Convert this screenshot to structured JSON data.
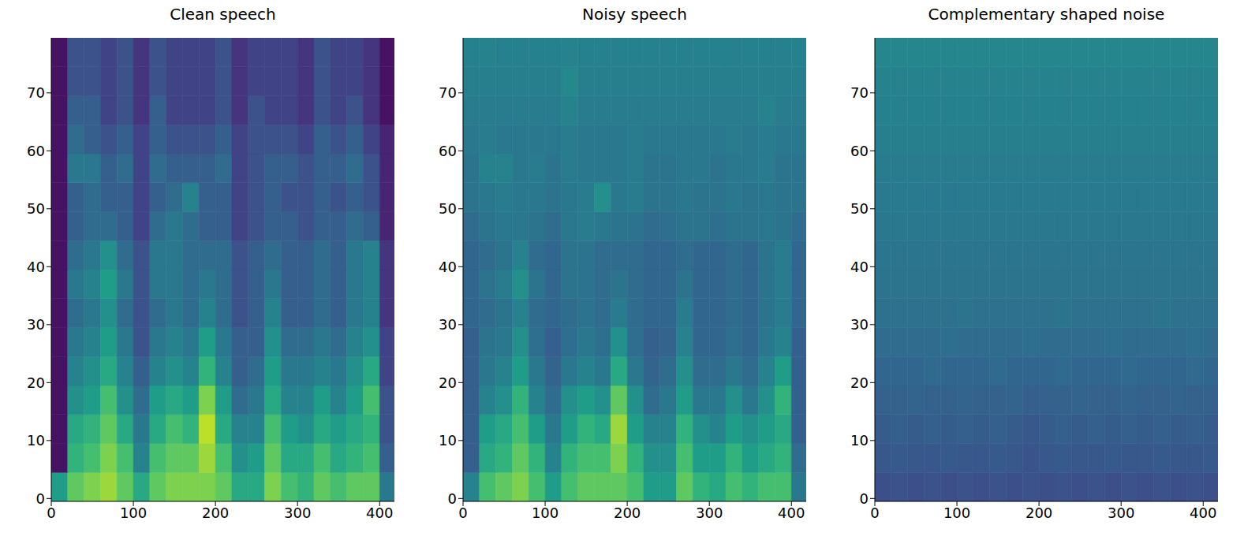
{
  "chart_data": [
    {
      "type": "heatmap",
      "title": "Clean speech",
      "xlim": [
        0,
        418
      ],
      "ylim": [
        -0.5,
        79.5
      ],
      "xticks": [
        0,
        100,
        200,
        300,
        400
      ],
      "yticks": [
        0,
        10,
        20,
        30,
        40,
        50,
        60,
        70
      ],
      "color_range": [
        0,
        1
      ],
      "x_edges": [
        0,
        20,
        40,
        60,
        80,
        100,
        120,
        140,
        160,
        180,
        200,
        220,
        240,
        260,
        280,
        300,
        320,
        340,
        360,
        380,
        400,
        418
      ],
      "y_edges": [
        -0.5,
        4.5,
        9.5,
        14.5,
        19.5,
        24.5,
        29.5,
        34.5,
        39.5,
        44.5,
        49.5,
        54.5,
        59.5,
        64.5,
        69.5,
        74.5,
        79.5
      ],
      "cells": [
        [
          0.55,
          0.75,
          0.8,
          0.85,
          0.75,
          0.6,
          0.75,
          0.8,
          0.8,
          0.8,
          0.75,
          0.6,
          0.6,
          0.8,
          0.7,
          0.65,
          0.75,
          0.7,
          0.75,
          0.75,
          0.4
        ],
        [
          0.05,
          0.65,
          0.7,
          0.8,
          0.7,
          0.45,
          0.7,
          0.75,
          0.75,
          0.85,
          0.7,
          0.5,
          0.55,
          0.75,
          0.6,
          0.6,
          0.7,
          0.6,
          0.65,
          0.7,
          0.3
        ],
        [
          0.05,
          0.6,
          0.65,
          0.75,
          0.6,
          0.4,
          0.6,
          0.7,
          0.65,
          0.9,
          0.6,
          0.45,
          0.45,
          0.7,
          0.55,
          0.5,
          0.6,
          0.55,
          0.6,
          0.65,
          0.25
        ],
        [
          0.05,
          0.5,
          0.55,
          0.7,
          0.5,
          0.35,
          0.55,
          0.6,
          0.55,
          0.8,
          0.55,
          0.35,
          0.4,
          0.6,
          0.45,
          0.45,
          0.55,
          0.45,
          0.55,
          0.7,
          0.25
        ],
        [
          0.05,
          0.45,
          0.5,
          0.6,
          0.45,
          0.3,
          0.45,
          0.5,
          0.45,
          0.65,
          0.45,
          0.3,
          0.35,
          0.55,
          0.4,
          0.4,
          0.45,
          0.4,
          0.5,
          0.6,
          0.2
        ],
        [
          0.05,
          0.4,
          0.45,
          0.55,
          0.4,
          0.25,
          0.4,
          0.45,
          0.4,
          0.55,
          0.4,
          0.3,
          0.3,
          0.5,
          0.35,
          0.35,
          0.4,
          0.35,
          0.45,
          0.5,
          0.2
        ],
        [
          0.05,
          0.35,
          0.4,
          0.5,
          0.35,
          0.25,
          0.35,
          0.4,
          0.35,
          0.45,
          0.35,
          0.25,
          0.3,
          0.45,
          0.3,
          0.3,
          0.35,
          0.3,
          0.4,
          0.45,
          0.15
        ],
        [
          0.05,
          0.4,
          0.45,
          0.55,
          0.4,
          0.25,
          0.4,
          0.4,
          0.35,
          0.4,
          0.35,
          0.25,
          0.3,
          0.4,
          0.3,
          0.3,
          0.35,
          0.3,
          0.4,
          0.45,
          0.15
        ],
        [
          0.05,
          0.35,
          0.4,
          0.5,
          0.35,
          0.25,
          0.4,
          0.4,
          0.35,
          0.35,
          0.35,
          0.25,
          0.3,
          0.35,
          0.3,
          0.3,
          0.35,
          0.3,
          0.4,
          0.45,
          0.15
        ],
        [
          0.05,
          0.3,
          0.35,
          0.35,
          0.3,
          0.2,
          0.35,
          0.4,
          0.35,
          0.3,
          0.3,
          0.2,
          0.25,
          0.3,
          0.3,
          0.25,
          0.3,
          0.3,
          0.35,
          0.3,
          0.1
        ],
        [
          0.05,
          0.3,
          0.35,
          0.3,
          0.3,
          0.2,
          0.3,
          0.35,
          0.45,
          0.3,
          0.3,
          0.2,
          0.25,
          0.3,
          0.25,
          0.25,
          0.3,
          0.25,
          0.3,
          0.25,
          0.1
        ],
        [
          0.05,
          0.4,
          0.4,
          0.3,
          0.35,
          0.2,
          0.35,
          0.3,
          0.3,
          0.3,
          0.35,
          0.2,
          0.25,
          0.3,
          0.3,
          0.25,
          0.3,
          0.3,
          0.35,
          0.25,
          0.1
        ],
        [
          0.05,
          0.35,
          0.3,
          0.25,
          0.3,
          0.2,
          0.3,
          0.25,
          0.25,
          0.25,
          0.3,
          0.2,
          0.25,
          0.25,
          0.25,
          0.2,
          0.3,
          0.25,
          0.3,
          0.2,
          0.1
        ],
        [
          0.05,
          0.3,
          0.3,
          0.2,
          0.25,
          0.15,
          0.3,
          0.2,
          0.2,
          0.2,
          0.25,
          0.15,
          0.25,
          0.2,
          0.2,
          0.15,
          0.25,
          0.2,
          0.25,
          0.15,
          0.05
        ],
        [
          0.05,
          0.25,
          0.25,
          0.2,
          0.25,
          0.15,
          0.25,
          0.2,
          0.2,
          0.2,
          0.25,
          0.15,
          0.2,
          0.2,
          0.2,
          0.15,
          0.25,
          0.2,
          0.2,
          0.15,
          0.05
        ],
        [
          0.05,
          0.25,
          0.25,
          0.2,
          0.25,
          0.15,
          0.25,
          0.2,
          0.2,
          0.2,
          0.25,
          0.15,
          0.2,
          0.2,
          0.2,
          0.15,
          0.25,
          0.2,
          0.2,
          0.15,
          0.05
        ]
      ]
    },
    {
      "type": "heatmap",
      "title": "Noisy speech",
      "xlim": [
        0,
        418
      ],
      "ylim": [
        -0.5,
        79.5
      ],
      "xticks": [
        0,
        100,
        200,
        300,
        400
      ],
      "yticks": [
        0,
        10,
        20,
        30,
        40,
        50,
        60,
        70
      ],
      "color_range": [
        0,
        1
      ],
      "x_edges": [
        0,
        20,
        40,
        60,
        80,
        100,
        120,
        140,
        160,
        180,
        200,
        220,
        240,
        260,
        280,
        300,
        320,
        340,
        360,
        380,
        400,
        418
      ],
      "y_edges": [
        -0.5,
        4.5,
        9.5,
        14.5,
        19.5,
        24.5,
        29.5,
        34.5,
        39.5,
        44.5,
        49.5,
        54.5,
        59.5,
        64.5,
        69.5,
        74.5,
        79.5
      ],
      "cells": [
        [
          0.45,
          0.7,
          0.75,
          0.8,
          0.7,
          0.55,
          0.7,
          0.75,
          0.75,
          0.75,
          0.7,
          0.55,
          0.55,
          0.75,
          0.65,
          0.6,
          0.7,
          0.65,
          0.7,
          0.7,
          0.4
        ],
        [
          0.3,
          0.6,
          0.65,
          0.75,
          0.65,
          0.45,
          0.65,
          0.7,
          0.7,
          0.8,
          0.65,
          0.5,
          0.5,
          0.7,
          0.55,
          0.55,
          0.65,
          0.55,
          0.6,
          0.65,
          0.35
        ],
        [
          0.3,
          0.55,
          0.6,
          0.7,
          0.55,
          0.4,
          0.55,
          0.65,
          0.6,
          0.85,
          0.55,
          0.45,
          0.45,
          0.65,
          0.5,
          0.45,
          0.55,
          0.5,
          0.55,
          0.6,
          0.3
        ],
        [
          0.3,
          0.45,
          0.5,
          0.65,
          0.45,
          0.35,
          0.5,
          0.55,
          0.5,
          0.75,
          0.5,
          0.35,
          0.4,
          0.55,
          0.4,
          0.4,
          0.5,
          0.4,
          0.5,
          0.65,
          0.3
        ],
        [
          0.3,
          0.4,
          0.45,
          0.55,
          0.4,
          0.32,
          0.4,
          0.45,
          0.4,
          0.6,
          0.4,
          0.32,
          0.35,
          0.5,
          0.35,
          0.35,
          0.4,
          0.35,
          0.45,
          0.55,
          0.3
        ],
        [
          0.3,
          0.38,
          0.4,
          0.5,
          0.36,
          0.3,
          0.36,
          0.4,
          0.36,
          0.5,
          0.36,
          0.3,
          0.32,
          0.45,
          0.33,
          0.33,
          0.36,
          0.33,
          0.4,
          0.45,
          0.3
        ],
        [
          0.33,
          0.35,
          0.38,
          0.45,
          0.35,
          0.33,
          0.35,
          0.38,
          0.35,
          0.42,
          0.35,
          0.33,
          0.33,
          0.42,
          0.33,
          0.33,
          0.35,
          0.33,
          0.38,
          0.42,
          0.33
        ],
        [
          0.33,
          0.38,
          0.42,
          0.5,
          0.38,
          0.33,
          0.38,
          0.38,
          0.35,
          0.38,
          0.35,
          0.33,
          0.33,
          0.38,
          0.33,
          0.33,
          0.35,
          0.33,
          0.38,
          0.42,
          0.33
        ],
        [
          0.33,
          0.35,
          0.38,
          0.45,
          0.35,
          0.33,
          0.38,
          0.38,
          0.35,
          0.35,
          0.35,
          0.33,
          0.33,
          0.35,
          0.33,
          0.33,
          0.35,
          0.33,
          0.38,
          0.42,
          0.33
        ],
        [
          0.35,
          0.38,
          0.4,
          0.4,
          0.38,
          0.35,
          0.4,
          0.42,
          0.4,
          0.38,
          0.38,
          0.35,
          0.36,
          0.38,
          0.38,
          0.36,
          0.38,
          0.38,
          0.4,
          0.38,
          0.35
        ],
        [
          0.38,
          0.4,
          0.42,
          0.4,
          0.4,
          0.38,
          0.4,
          0.42,
          0.5,
          0.4,
          0.42,
          0.38,
          0.38,
          0.4,
          0.38,
          0.38,
          0.4,
          0.38,
          0.4,
          0.38,
          0.38
        ],
        [
          0.38,
          0.45,
          0.45,
          0.4,
          0.42,
          0.38,
          0.42,
          0.4,
          0.4,
          0.4,
          0.42,
          0.38,
          0.38,
          0.4,
          0.4,
          0.38,
          0.4,
          0.4,
          0.42,
          0.38,
          0.38
        ],
        [
          0.4,
          0.42,
          0.4,
          0.4,
          0.4,
          0.4,
          0.42,
          0.4,
          0.4,
          0.4,
          0.42,
          0.4,
          0.4,
          0.4,
          0.4,
          0.4,
          0.42,
          0.4,
          0.42,
          0.4,
          0.4
        ],
        [
          0.42,
          0.42,
          0.42,
          0.42,
          0.42,
          0.42,
          0.45,
          0.42,
          0.42,
          0.42,
          0.42,
          0.42,
          0.42,
          0.42,
          0.42,
          0.42,
          0.42,
          0.42,
          0.45,
          0.42,
          0.42
        ],
        [
          0.43,
          0.43,
          0.43,
          0.43,
          0.43,
          0.43,
          0.47,
          0.43,
          0.43,
          0.43,
          0.43,
          0.43,
          0.43,
          0.43,
          0.43,
          0.43,
          0.43,
          0.43,
          0.43,
          0.43,
          0.43
        ],
        [
          0.44,
          0.45,
          0.44,
          0.44,
          0.44,
          0.44,
          0.45,
          0.44,
          0.44,
          0.44,
          0.44,
          0.44,
          0.44,
          0.44,
          0.44,
          0.44,
          0.44,
          0.44,
          0.44,
          0.44,
          0.44
        ]
      ]
    },
    {
      "type": "heatmap",
      "title": "Complementary shaped noise",
      "xlim": [
        0,
        418
      ],
      "ylim": [
        -0.5,
        79.5
      ],
      "xticks": [
        0,
        100,
        200,
        300,
        400
      ],
      "yticks": [
        0,
        10,
        20,
        30,
        40,
        50,
        60,
        70
      ],
      "color_range": [
        0,
        1
      ],
      "x_edges": [
        0,
        20,
        40,
        60,
        80,
        100,
        120,
        140,
        160,
        180,
        200,
        220,
        240,
        260,
        280,
        300,
        320,
        340,
        360,
        380,
        400,
        418
      ],
      "y_edges": [
        -0.5,
        4.5,
        9.5,
        14.5,
        19.5,
        24.5,
        29.5,
        34.5,
        39.5,
        44.5,
        49.5,
        54.5,
        59.5,
        64.5,
        69.5,
        74.5,
        79.5
      ],
      "cells": [
        [
          0.24,
          0.25,
          0.24,
          0.25,
          0.24,
          0.25,
          0.24,
          0.25,
          0.24,
          0.25,
          0.24,
          0.25,
          0.24,
          0.25,
          0.24,
          0.25,
          0.24,
          0.25,
          0.24,
          0.25,
          0.24
        ],
        [
          0.27,
          0.28,
          0.27,
          0.27,
          0.28,
          0.27,
          0.27,
          0.28,
          0.27,
          0.26,
          0.27,
          0.28,
          0.27,
          0.27,
          0.28,
          0.27,
          0.27,
          0.28,
          0.27,
          0.27,
          0.28
        ],
        [
          0.29,
          0.3,
          0.29,
          0.3,
          0.29,
          0.3,
          0.29,
          0.3,
          0.29,
          0.27,
          0.29,
          0.3,
          0.29,
          0.3,
          0.29,
          0.3,
          0.29,
          0.3,
          0.29,
          0.3,
          0.29
        ],
        [
          0.31,
          0.31,
          0.32,
          0.31,
          0.31,
          0.32,
          0.31,
          0.31,
          0.32,
          0.3,
          0.31,
          0.31,
          0.32,
          0.31,
          0.31,
          0.32,
          0.31,
          0.31,
          0.32,
          0.31,
          0.31
        ],
        [
          0.33,
          0.33,
          0.33,
          0.34,
          0.33,
          0.33,
          0.33,
          0.34,
          0.33,
          0.33,
          0.33,
          0.34,
          0.33,
          0.33,
          0.33,
          0.34,
          0.33,
          0.33,
          0.33,
          0.34,
          0.33
        ],
        [
          0.35,
          0.35,
          0.35,
          0.35,
          0.36,
          0.35,
          0.35,
          0.35,
          0.35,
          0.36,
          0.35,
          0.35,
          0.35,
          0.35,
          0.36,
          0.35,
          0.35,
          0.35,
          0.35,
          0.36,
          0.35
        ],
        [
          0.37,
          0.37,
          0.37,
          0.37,
          0.37,
          0.38,
          0.37,
          0.37,
          0.37,
          0.37,
          0.37,
          0.38,
          0.37,
          0.37,
          0.37,
          0.37,
          0.37,
          0.38,
          0.37,
          0.37,
          0.37
        ],
        [
          0.38,
          0.38,
          0.38,
          0.38,
          0.38,
          0.38,
          0.38,
          0.38,
          0.38,
          0.38,
          0.38,
          0.38,
          0.38,
          0.38,
          0.38,
          0.38,
          0.38,
          0.38,
          0.38,
          0.38,
          0.38
        ],
        [
          0.39,
          0.39,
          0.39,
          0.39,
          0.39,
          0.39,
          0.39,
          0.39,
          0.39,
          0.39,
          0.39,
          0.39,
          0.39,
          0.39,
          0.39,
          0.39,
          0.39,
          0.39,
          0.39,
          0.39,
          0.39
        ],
        [
          0.4,
          0.4,
          0.4,
          0.4,
          0.4,
          0.4,
          0.4,
          0.4,
          0.4,
          0.4,
          0.4,
          0.4,
          0.4,
          0.4,
          0.4,
          0.4,
          0.4,
          0.4,
          0.4,
          0.4,
          0.4
        ],
        [
          0.41,
          0.41,
          0.41,
          0.41,
          0.41,
          0.41,
          0.41,
          0.41,
          0.41,
          0.41,
          0.41,
          0.41,
          0.41,
          0.41,
          0.41,
          0.41,
          0.41,
          0.41,
          0.41,
          0.41,
          0.41
        ],
        [
          0.42,
          0.42,
          0.42,
          0.42,
          0.42,
          0.42,
          0.42,
          0.42,
          0.42,
          0.42,
          0.42,
          0.42,
          0.42,
          0.42,
          0.42,
          0.42,
          0.42,
          0.42,
          0.42,
          0.42,
          0.42
        ],
        [
          0.43,
          0.43,
          0.43,
          0.43,
          0.43,
          0.43,
          0.43,
          0.43,
          0.43,
          0.43,
          0.43,
          0.43,
          0.43,
          0.43,
          0.43,
          0.43,
          0.43,
          0.43,
          0.43,
          0.43,
          0.43
        ],
        [
          0.44,
          0.44,
          0.44,
          0.44,
          0.44,
          0.44,
          0.44,
          0.44,
          0.44,
          0.44,
          0.44,
          0.44,
          0.44,
          0.44,
          0.44,
          0.44,
          0.44,
          0.44,
          0.44,
          0.44,
          0.44
        ],
        [
          0.45,
          0.45,
          0.45,
          0.45,
          0.45,
          0.45,
          0.45,
          0.45,
          0.45,
          0.45,
          0.45,
          0.45,
          0.45,
          0.45,
          0.45,
          0.45,
          0.45,
          0.45,
          0.45,
          0.45,
          0.45
        ],
        [
          0.46,
          0.46,
          0.46,
          0.46,
          0.46,
          0.46,
          0.46,
          0.46,
          0.46,
          0.46,
          0.46,
          0.46,
          0.46,
          0.46,
          0.46,
          0.46,
          0.46,
          0.46,
          0.46,
          0.46,
          0.46
        ]
      ]
    }
  ]
}
